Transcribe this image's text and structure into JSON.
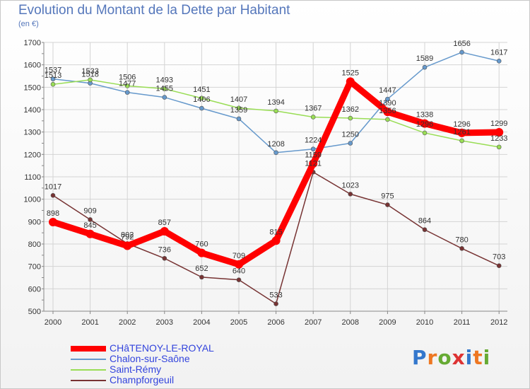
{
  "title": "Evolution du Montant de la Dette par Habitant",
  "subtitle": "(en €)",
  "logo": "Proxiti",
  "colors": {
    "grid": "#d4d4d4",
    "axis": "#888888",
    "tick_label": "#333333",
    "data_label": "#333333"
  },
  "chart_data": {
    "type": "line",
    "title": "Evolution du Montant de la Dette par Habitant",
    "subtitle": "(en €)",
    "xlabel": "",
    "ylabel": "",
    "x": [
      "2000",
      "2001",
      "2002",
      "2003",
      "2004",
      "2005",
      "2006",
      "2007",
      "2008",
      "2009",
      "2010",
      "2011",
      "2012"
    ],
    "ylim": [
      500,
      1700
    ],
    "yticks": [
      500,
      600,
      700,
      800,
      900,
      1000,
      1100,
      1200,
      1300,
      1400,
      1500,
      1600,
      1700
    ],
    "grid": true,
    "legend_position": "bottom-left",
    "series": [
      {
        "name": "CHâTENOY-LE-ROYAL",
        "color": "#ff0000",
        "width": 9,
        "values": [
          898,
          845,
          792,
          857,
          760,
          709,
          815,
          1159,
          1525,
          1390,
          1338,
          1296,
          1299
        ],
        "labels": [
          "898",
          "845",
          "792",
          "857",
          "760",
          "709",
          "815",
          "1159",
          "1525",
          "1390",
          "1338",
          "1296",
          "1299"
        ]
      },
      {
        "name": "Chalon-sur-Saône",
        "color": "#6699cc",
        "width": 1.5,
        "values": [
          1537,
          1518,
          1477,
          1455,
          1406,
          1359,
          1208,
          1224,
          1250,
          1447,
          1589,
          1656,
          1617
        ],
        "labels": [
          "1537",
          "1518",
          "1477",
          "1455",
          "1406",
          "1359",
          "1208",
          "1224",
          "1250",
          "1447",
          "1589",
          "1656",
          "1617"
        ]
      },
      {
        "name": "Saint-Rémy",
        "color": "#99dd55",
        "width": 1.5,
        "values": [
          1513,
          1533,
          1506,
          1493,
          1451,
          1407,
          1394,
          1367,
          1362,
          1356,
          1296,
          1261,
          1233
        ],
        "labels": [
          "1513",
          "1533",
          "1506",
          "1493",
          "1451",
          "1407",
          "1394",
          "1367",
          "1362",
          "1356",
          "1296",
          "1261",
          "1233"
        ]
      },
      {
        "name": "Champforgeuil",
        "color": "#773333",
        "width": 1.5,
        "values": [
          1017,
          909,
          802,
          736,
          652,
          640,
          533,
          1121,
          1023,
          975,
          864,
          780,
          703
        ],
        "labels": [
          "1017",
          "909",
          "802",
          "736",
          "652",
          "640",
          "533",
          "1121",
          "1023",
          "975",
          "864",
          "780",
          "703"
        ]
      }
    ]
  }
}
